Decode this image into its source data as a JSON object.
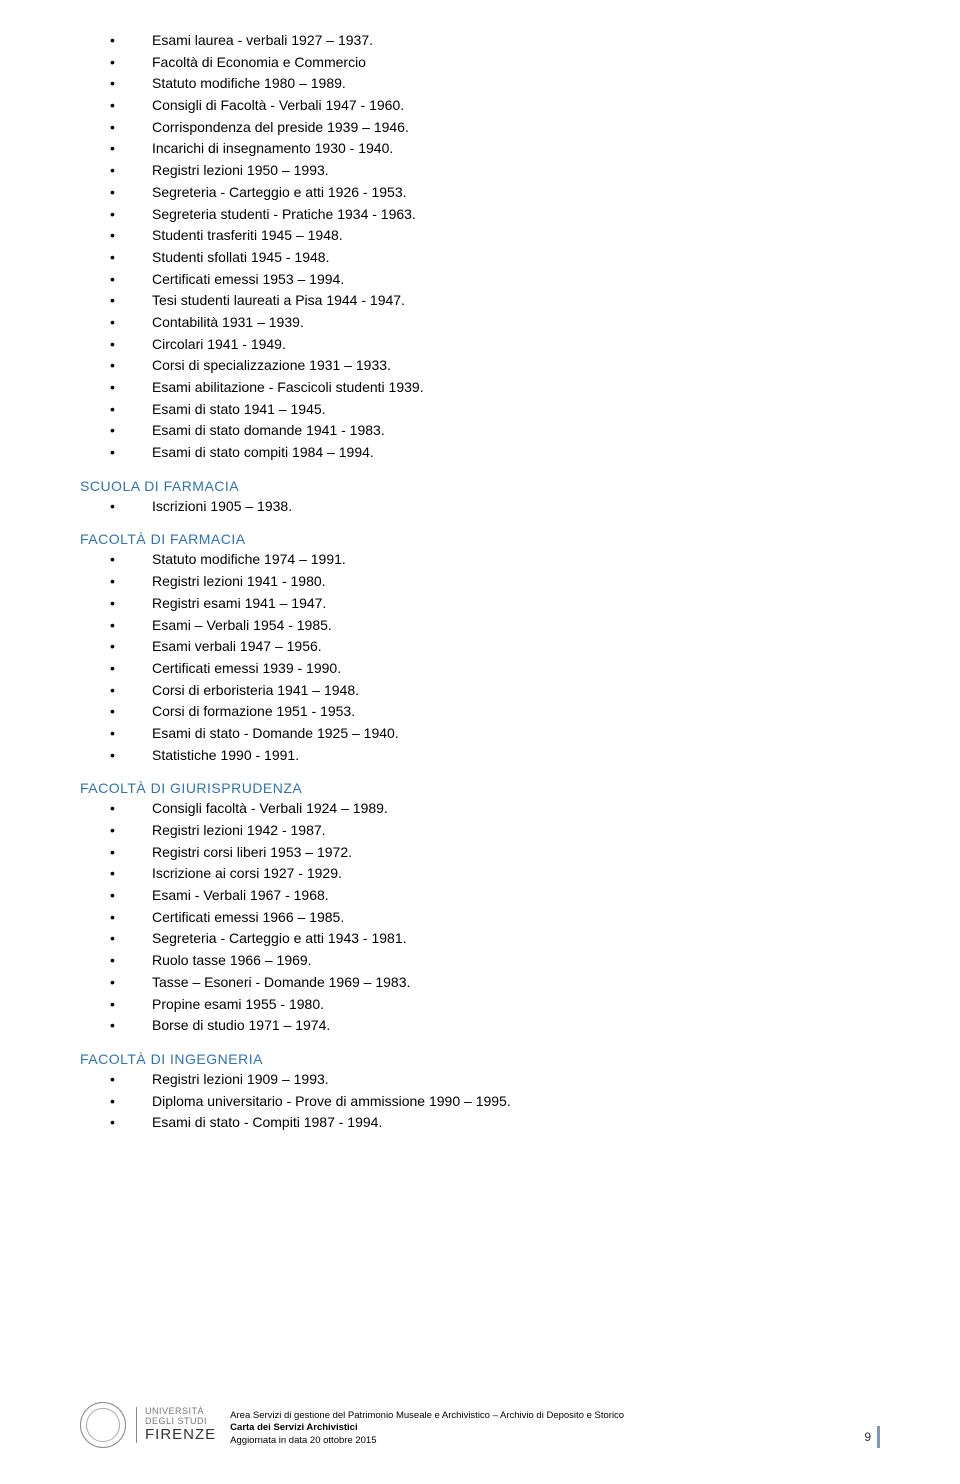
{
  "sections": [
    {
      "heading": null,
      "items": [
        "Esami laurea - verbali 1927 – 1937.",
        "Facoltà di Economia e Commercio",
        "Statuto modifiche 1980 – 1989.",
        "Consigli di Facoltà - Verbali 1947 - 1960.",
        "Corrispondenza del preside 1939 – 1946.",
        "Incarichi di insegnamento 1930 - 1940.",
        "Registri lezioni 1950 – 1993.",
        "Segreteria - Carteggio e atti 1926 - 1953.",
        "Segreteria studenti - Pratiche 1934 - 1963.",
        "Studenti trasferiti 1945 – 1948.",
        "Studenti sfollati 1945 - 1948.",
        "Certificati emessi 1953 – 1994.",
        "Tesi studenti laureati a Pisa 1944 - 1947.",
        "Contabilità 1931 – 1939.",
        "Circolari 1941 - 1949.",
        "Corsi di specializzazione 1931 – 1933.",
        "Esami abilitazione - Fascicoli studenti 1939.",
        "Esami di stato 1941 – 1945.",
        "Esami di stato domande 1941 - 1983.",
        "Esami di stato compiti 1984 – 1994."
      ]
    },
    {
      "heading": "SCUOLA DI FARMACIA",
      "items": [
        "Iscrizioni 1905 – 1938."
      ]
    },
    {
      "heading": "FACOLTÀ DI FARMACIA",
      "items": [
        "Statuto modifiche 1974 – 1991.",
        "Registri lezioni 1941 - 1980.",
        "Registri esami 1941 – 1947.",
        "Esami – Verbali 1954 - 1985.",
        "Esami verbali 1947 – 1956.",
        "Certificati emessi 1939 - 1990.",
        "Corsi di erboristeria 1941 – 1948.",
        "Corsi di formazione 1951 - 1953.",
        "Esami di stato - Domande 1925 – 1940.",
        "Statistiche 1990 - 1991."
      ]
    },
    {
      "heading": "FACOLTÀ DI GIURISPRUDENZA",
      "items": [
        "Consigli facoltà - Verbali 1924 – 1989.",
        "Registri lezioni 1942 - 1987.",
        "Registri corsi liberi 1953 – 1972.",
        "Iscrizione ai corsi 1927 - 1929.",
        "Esami - Verbali 1967 - 1968.",
        "Certificati emessi 1966 – 1985.",
        "Segreteria - Carteggio e atti 1943 - 1981.",
        "Ruolo tasse 1966 – 1969.",
        "Tasse – Esoneri - Domande 1969 – 1983.",
        "Propine esami 1955 - 1980.",
        "Borse di studio 1971 – 1974."
      ]
    },
    {
      "heading": "FACOLTÀ DI INGEGNERIA",
      "items": [
        "Registri lezioni 1909 – 1993.",
        "Diploma universitario - Prove di ammissione 1990 – 1995.",
        "Esami di stato - Compiti 1987 - 1994."
      ]
    }
  ],
  "footer": {
    "logo": {
      "line1": "UNIVERSITÀ",
      "line2": "DEGLI STUDI",
      "line3": "FIRENZE"
    },
    "center": {
      "line1": "Area Servizi di gestione del Patrimonio Museale e Archivistico – Archivio di Deposito e Storico",
      "line2": "Carta dei Servizi Archivistici",
      "line3": "Aggiornata in data 20 ottobre 2015"
    },
    "page_number": "9"
  },
  "colors": {
    "heading": "#2e74b5",
    "text": "#000000",
    "page_accent": "#7a99b8"
  }
}
